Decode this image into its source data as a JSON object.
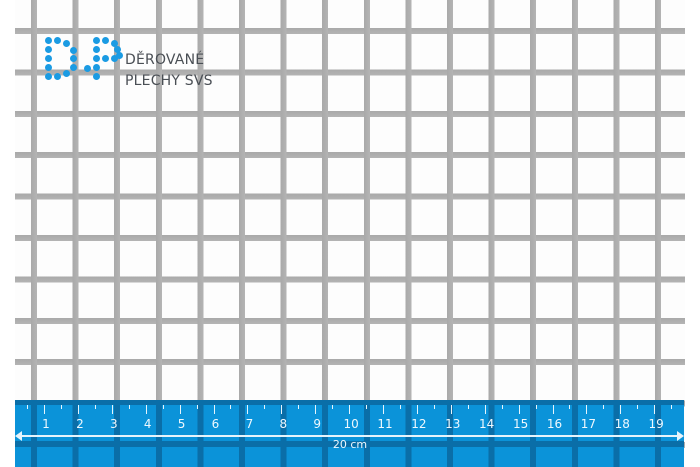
{
  "brand": {
    "line1": "DĚROVANÉ",
    "line2": "PLECHY SVS",
    "logo_letters": "DP",
    "color": "#1a9be3"
  },
  "ruler": {
    "labels": [
      "1",
      "2",
      "3",
      "4",
      "5",
      "6",
      "7",
      "8",
      "9",
      "10",
      "11",
      "12",
      "13",
      "14",
      "15",
      "16",
      "17",
      "18",
      "19"
    ],
    "length_label": "20 cm",
    "color": "#0b93d9"
  }
}
